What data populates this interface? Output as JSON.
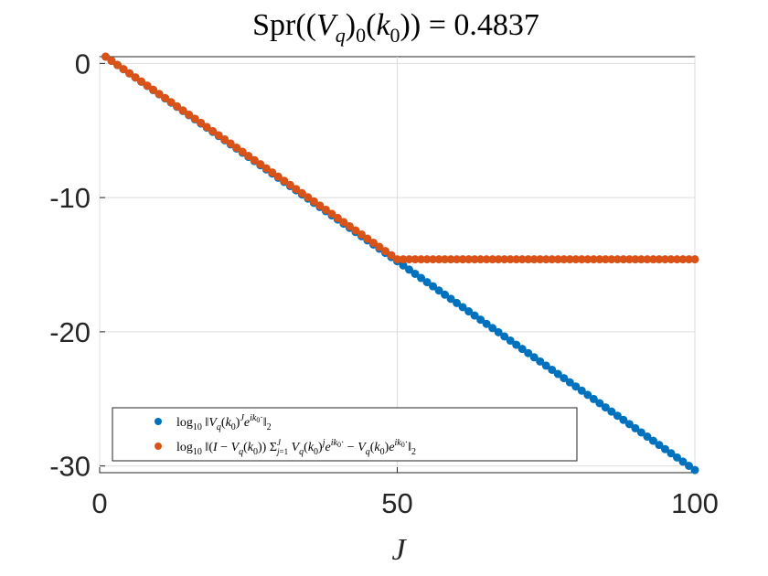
{
  "chart_data": {
    "type": "scatter",
    "title": "Spr((V_q)_0(k_0)) = 0.4837",
    "xlabel": "J",
    "ylabel": "",
    "xlim": [
      0,
      100
    ],
    "ylim": [
      -30.5,
      0.5
    ],
    "xticks": [
      "0",
      "50",
      "100"
    ],
    "yticks": [
      "0",
      "-10",
      "-20",
      "-30"
    ],
    "grid": true,
    "legend_position": "bottom-left",
    "series": [
      {
        "name": "log10 ||V_q(k_0)^J e^{ik_0·}||_2",
        "color": "#0072BD",
        "description": "linear decay",
        "x_start": 1,
        "x_end": 100,
        "y_start": 0.5,
        "y_end": -30.3
      },
      {
        "name": "log10 ||(I − V_q(k_0)) Σ_{j=1}^{J} V_q(k_0)^j e^{ik_0·} − V_q(k_0)e^{ik_0·}||_2",
        "color": "#D95319",
        "description": "linear decay then plateau",
        "x_start": 1,
        "y_start": 0.5,
        "x_plateau": 50,
        "y_plateau": -14.6,
        "x_end": 100
      }
    ]
  }
}
